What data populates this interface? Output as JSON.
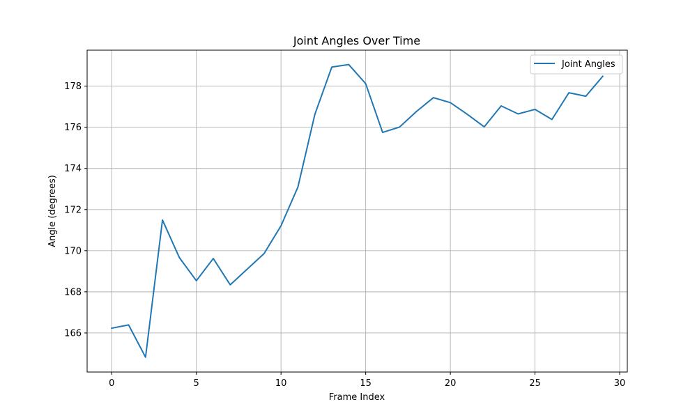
{
  "chart_data": {
    "type": "line",
    "title": "Joint Angles Over Time",
    "xlabel": "Frame Index",
    "ylabel": "Angle (degrees)",
    "xlim": [
      -1.45,
      30.45
    ],
    "ylim": [
      164.1,
      179.75
    ],
    "xticks": [
      0,
      5,
      10,
      15,
      20,
      25,
      30
    ],
    "yticks": [
      166,
      168,
      170,
      172,
      174,
      176,
      178
    ],
    "grid": true,
    "legend_position": "top-right",
    "x": [
      0,
      1,
      2,
      3,
      4,
      5,
      6,
      7,
      8,
      9,
      10,
      11,
      12,
      13,
      14,
      15,
      16,
      17,
      18,
      19,
      20,
      21,
      22,
      23,
      24,
      25,
      26,
      27,
      28,
      29
    ],
    "series": [
      {
        "name": "Joint Angles",
        "color": "#1f77b4",
        "values": [
          166.23,
          166.39,
          164.82,
          171.49,
          169.66,
          168.54,
          169.62,
          168.34,
          169.1,
          169.86,
          171.21,
          173.1,
          176.63,
          178.93,
          179.05,
          178.12,
          175.75,
          176.01,
          176.77,
          177.44,
          177.2,
          176.63,
          176.02,
          177.04,
          176.65,
          176.87,
          176.38,
          177.68,
          177.51,
          178.48
        ]
      }
    ]
  }
}
